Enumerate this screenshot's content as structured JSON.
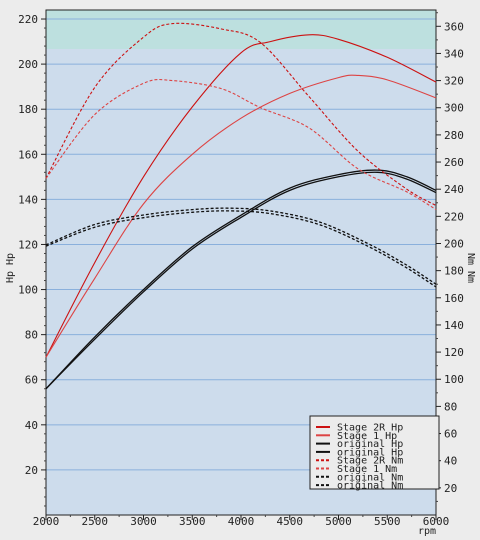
{
  "chart_data": {
    "type": "line",
    "x_label": "rpm",
    "left_axis_label": "Hp Hp",
    "right_axis_label": "Nm Nm",
    "xlim": [
      2000,
      6000
    ],
    "left_ylim": [
      0,
      224
    ],
    "right_ylim": [
      0,
      372
    ],
    "x_ticks": [
      2000,
      2500,
      3000,
      3500,
      4000,
      4500,
      5000,
      5500,
      6000
    ],
    "left_ticks": [
      20,
      40,
      60,
      80,
      100,
      120,
      140,
      160,
      180,
      200,
      220
    ],
    "right_ticks": [
      20,
      40,
      60,
      80,
      100,
      120,
      140,
      160,
      180,
      200,
      220,
      240,
      260,
      280,
      300,
      320,
      340,
      360
    ],
    "grid": true,
    "legend_position": "bottom-right",
    "colors": {
      "plot_bg": "#cddcec",
      "band_bg": "#bde0df",
      "grid": "#8ab0dc",
      "stage2": "#cc1111",
      "stage1": "#dd4444",
      "original": "#111111"
    },
    "series": [
      {
        "name": "Stage 2R Hp",
        "axis": "left",
        "style": "solid",
        "color": "#cc1111",
        "x": [
          2000,
          2500,
          3000,
          3500,
          4000,
          4300,
          4700,
          5000,
          5500,
          6000
        ],
        "y": [
          70,
          112,
          150,
          181,
          205,
          210,
          213,
          211,
          203,
          192
        ]
      },
      {
        "name": "Stage 1 Hp",
        "axis": "left",
        "style": "solid",
        "color": "#dd4444",
        "x": [
          2000,
          2500,
          3000,
          3500,
          4000,
          4500,
          5000,
          5200,
          5500,
          6000
        ],
        "y": [
          70,
          105,
          138,
          160,
          176,
          187,
          194,
          195,
          193,
          185
        ]
      },
      {
        "name": "original Hp",
        "axis": "left",
        "style": "solid",
        "color": "#111111",
        "x": [
          2000,
          2500,
          3000,
          3500,
          4000,
          4500,
          5000,
          5400,
          5700,
          6000
        ],
        "y": [
          56,
          78,
          99,
          118,
          132,
          144,
          150,
          152,
          149,
          143
        ]
      },
      {
        "name": "original Hp",
        "axis": "left",
        "style": "solid",
        "color": "#111111",
        "x": [
          2000,
          2500,
          3000,
          3500,
          4000,
          4500,
          5000,
          5400,
          5700,
          6000
        ],
        "y": [
          56,
          79,
          100,
          119,
          133,
          145,
          151,
          153,
          150,
          144
        ]
      },
      {
        "name": "Stage 2R Nm",
        "axis": "right",
        "style": "dashed",
        "color": "#cc1111",
        "x": [
          2000,
          2500,
          3000,
          3300,
          3800,
          4200,
          4700,
          5200,
          5700,
          6000
        ],
        "y": [
          248,
          315,
          352,
          362,
          358,
          348,
          308,
          268,
          240,
          228
        ]
      },
      {
        "name": "Stage 1 Nm",
        "axis": "right",
        "style": "dashed",
        "color": "#dd4444",
        "x": [
          2000,
          2500,
          3000,
          3300,
          3800,
          4200,
          4700,
          5200,
          5700,
          6000
        ],
        "y": [
          248,
          295,
          318,
          320,
          314,
          300,
          285,
          255,
          238,
          225
        ]
      },
      {
        "name": "original Nm",
        "axis": "right",
        "style": "dashed",
        "color": "#111111",
        "x": [
          2000,
          2500,
          3000,
          3500,
          3900,
          4300,
          4800,
          5300,
          5700,
          6000
        ],
        "y": [
          199,
          214,
          221,
          225,
          226,
          224,
          216,
          200,
          184,
          170
        ]
      },
      {
        "name": "original Nm",
        "axis": "right",
        "style": "dashed",
        "color": "#111111",
        "x": [
          2000,
          2500,
          3000,
          3500,
          3900,
          4300,
          4800,
          5300,
          5700,
          6000
        ],
        "y": [
          198,
          212,
          219,
          223,
          224,
          222,
          214,
          198,
          182,
          168
        ]
      }
    ]
  }
}
